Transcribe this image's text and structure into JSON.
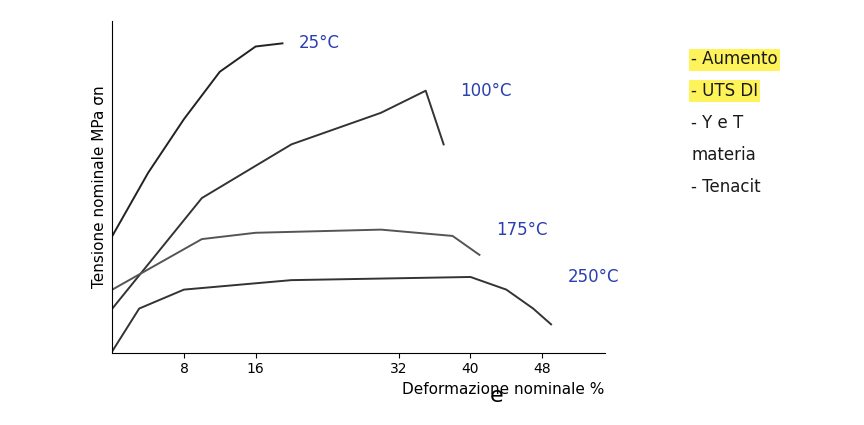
{
  "chart_data": {
    "type": "line",
    "x_label": "Deformazione nominale %",
    "x_symbol": "e",
    "y_label": "Tensione nominale MPa σn",
    "annotations": [
      "- Aumento",
      "- UTS DI",
      "- Y e T",
      "materia",
      "- Tenacit"
    ],
    "xlim": [
      0,
      55
    ],
    "xticks": [
      8,
      16,
      32,
      40,
      48
    ],
    "ylim": [
      0,
      105
    ],
    "yticks": [],
    "tick_labels": "x",
    "grid": false,
    "series": [
      {
        "name": "25°C",
        "color": "#222222",
        "x": [
          0,
          4,
          8,
          12,
          16,
          19
        ],
        "values": [
          37,
          57,
          74,
          89,
          97,
          98
        ]
      },
      {
        "name": "100°C",
        "color": "#333333",
        "x": [
          0,
          10,
          20,
          30,
          35,
          37
        ],
        "values": [
          14,
          49,
          66,
          76,
          83,
          66
        ]
      },
      {
        "name": "175°C",
        "color": "#555555",
        "x": [
          0,
          10,
          16,
          30,
          38,
          41
        ],
        "values": [
          20,
          36,
          38,
          39,
          37,
          31
        ]
      },
      {
        "name": "250°C",
        "color": "#333333",
        "x": [
          0,
          3,
          8,
          20,
          40,
          44,
          47,
          49
        ],
        "values": [
          0.5,
          14,
          20,
          23,
          24,
          20,
          14,
          9
        ]
      }
    ]
  }
}
